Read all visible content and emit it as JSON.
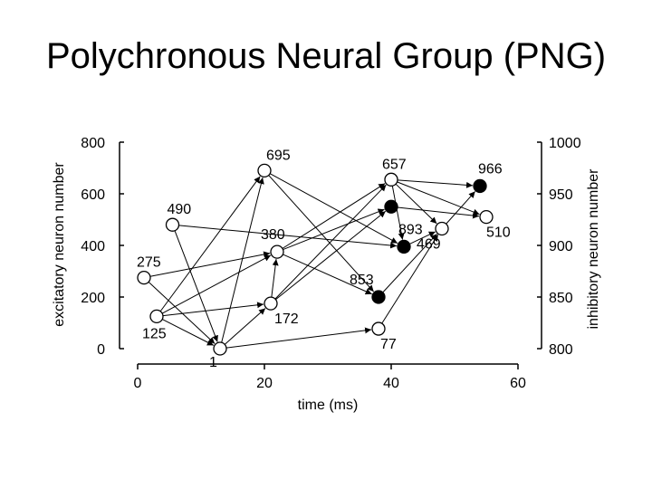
{
  "slide": {
    "title": "Polychronous Neural Group (PNG)"
  },
  "chart_data": {
    "type": "scatter",
    "xlabel": "time (ms)",
    "ylabel": "excitatory neuron number",
    "y2label": "inhibitory neuron number",
    "xlim": [
      0,
      60
    ],
    "ylim": [
      0,
      800
    ],
    "y2lim": [
      800,
      1000
    ],
    "xticks": [
      "0",
      "20",
      "40",
      "60"
    ],
    "yticks": [
      "0",
      "200",
      "400",
      "600",
      "800"
    ],
    "y2ticks": [
      "800",
      "850",
      "900",
      "950",
      "1000"
    ],
    "colors": {
      "excitatory_fill": "#ffffff",
      "inhibitory_fill": "#000000",
      "stroke": "#000000"
    },
    "neurons": [
      {
        "id": "n275",
        "label": "275",
        "t": 1,
        "y": 275,
        "kind": "excitatory"
      },
      {
        "id": "n125",
        "label": "125",
        "t": 3,
        "y": 125,
        "kind": "excitatory"
      },
      {
        "id": "n490",
        "label": "490",
        "t": 5.5,
        "y": 480,
        "kind": "excitatory"
      },
      {
        "id": "n1",
        "label": "1",
        "t": 13,
        "y": 0,
        "kind": "excitatory"
      },
      {
        "id": "n695",
        "label": "695",
        "t": 20,
        "y": 690,
        "kind": "excitatory"
      },
      {
        "id": "n380",
        "label": "380",
        "t": 22,
        "y": 375,
        "kind": "excitatory"
      },
      {
        "id": "n172",
        "label": "172",
        "t": 21,
        "y": 175,
        "kind": "excitatory"
      },
      {
        "id": "n657",
        "label": "657",
        "t": 40,
        "y": 655,
        "kind": "excitatory"
      },
      {
        "id": "n77",
        "label": "77",
        "t": 38,
        "y": 77,
        "kind": "excitatory"
      },
      {
        "id": "n469",
        "label": "469",
        "t": 48,
        "y": 465,
        "kind": "excitatory"
      },
      {
        "id": "n510",
        "label": "510",
        "t": 55,
        "y": 510,
        "kind": "excitatory"
      },
      {
        "id": "n853",
        "label": "853",
        "t": 38,
        "y": 200,
        "kind": "inhibitory"
      },
      {
        "id": "n893",
        "label": "893",
        "t": 42,
        "y": 395,
        "kind": "inhibitory"
      },
      {
        "id": "n_mid",
        "label": "",
        "t": 40,
        "y": 550,
        "kind": "inhibitory"
      },
      {
        "id": "n966",
        "label": "966",
        "t": 54,
        "y": 630,
        "kind": "inhibitory"
      }
    ],
    "connections": [
      [
        "n275",
        "n1"
      ],
      [
        "n275",
        "n380"
      ],
      [
        "n125",
        "n1"
      ],
      [
        "n125",
        "n695"
      ],
      [
        "n125",
        "n380"
      ],
      [
        "n125",
        "n172"
      ],
      [
        "n490",
        "n1"
      ],
      [
        "n490",
        "n893"
      ],
      [
        "n1",
        "n695"
      ],
      [
        "n1",
        "n172"
      ],
      [
        "n1",
        "n77"
      ],
      [
        "n695",
        "n853"
      ],
      [
        "n695",
        "n893"
      ],
      [
        "n380",
        "n657"
      ],
      [
        "n380",
        "n_mid"
      ],
      [
        "n380",
        "n853"
      ],
      [
        "n172",
        "n657"
      ],
      [
        "n172",
        "n_mid"
      ],
      [
        "n172",
        "n380"
      ],
      [
        "n657",
        "n966"
      ],
      [
        "n657",
        "n469"
      ],
      [
        "n657",
        "n893"
      ],
      [
        "n657",
        "n510"
      ],
      [
        "n77",
        "n469"
      ],
      [
        "n469",
        "n966"
      ],
      [
        "n853",
        "n469"
      ],
      [
        "n_mid",
        "n510"
      ],
      [
        "n893",
        "n469"
      ]
    ]
  }
}
